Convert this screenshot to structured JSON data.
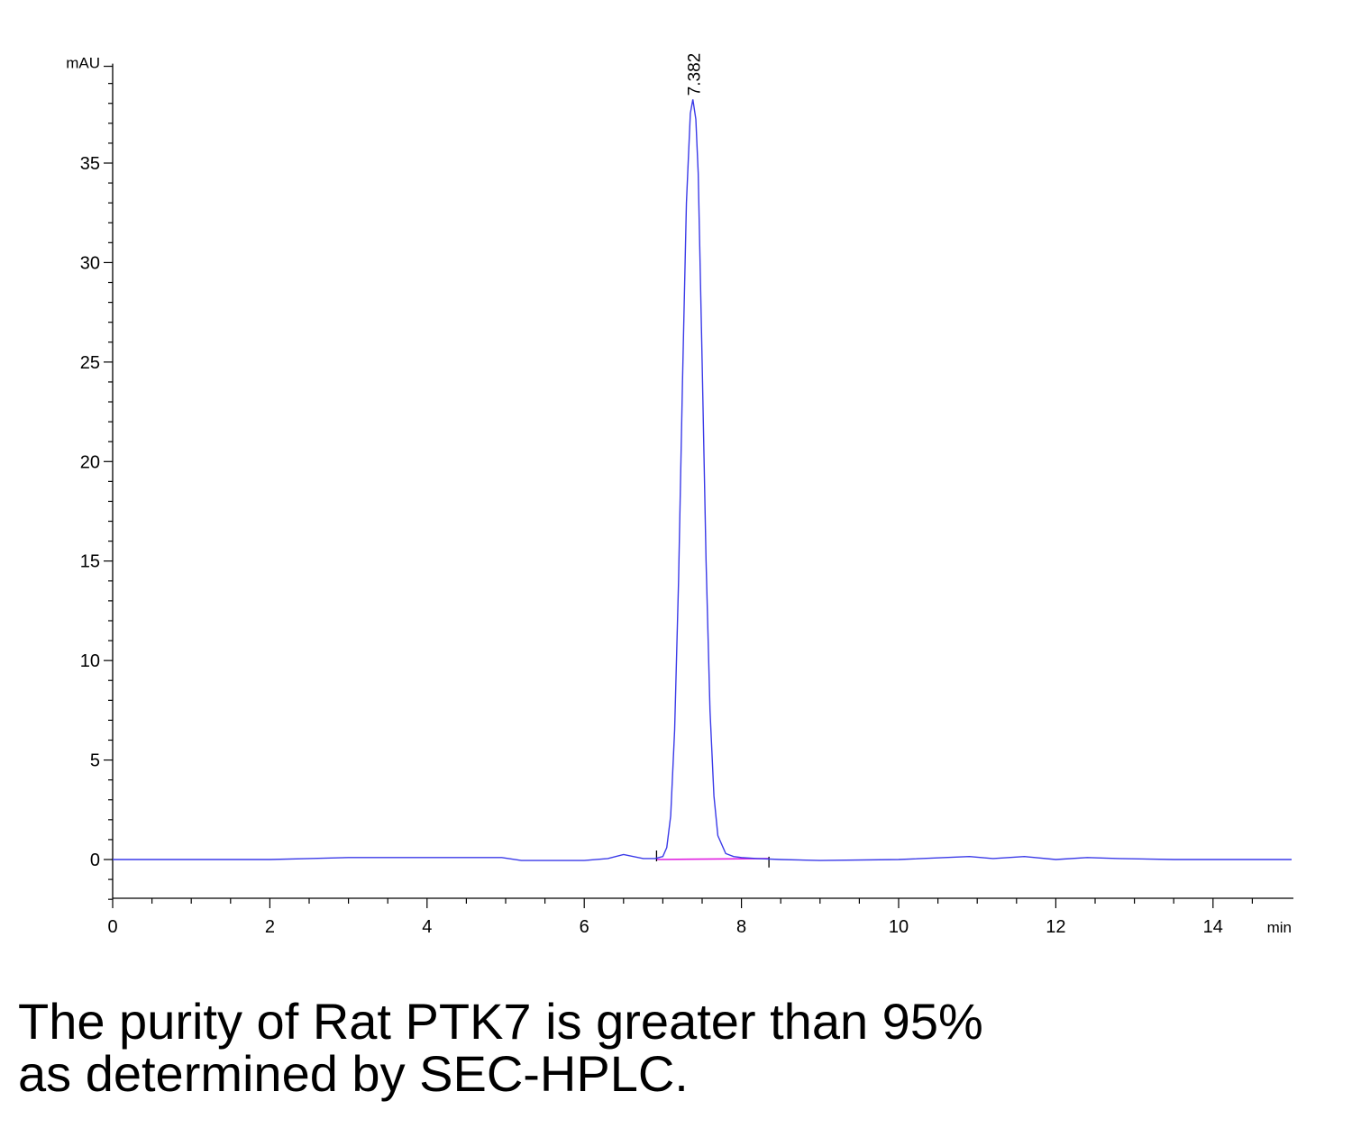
{
  "chart_data": {
    "type": "line",
    "title": "",
    "xlabel": "",
    "ylabel": "",
    "x_unit": "min",
    "y_unit": "mAU",
    "xlim": [
      0,
      15
    ],
    "ylim": [
      -2,
      40
    ],
    "x_ticks": [
      0,
      2,
      4,
      6,
      8,
      10,
      12,
      14
    ],
    "y_ticks": [
      0,
      5,
      10,
      15,
      20,
      25,
      30,
      35
    ],
    "peaks": [
      {
        "label": "7.382",
        "retention_time": 7.382,
        "height": 38.2
      }
    ],
    "integration": {
      "start": 6.92,
      "end": 8.35
    },
    "series": [
      {
        "x": [
          0,
          2,
          2.5,
          3,
          4,
          4.95,
          5.2,
          6,
          6.3,
          6.5,
          6.75,
          6.9,
          7.0,
          7.05,
          7.1,
          7.15,
          7.2,
          7.25,
          7.3,
          7.35,
          7.382,
          7.42,
          7.45,
          7.5,
          7.55,
          7.6,
          7.65,
          7.7,
          7.8,
          7.9,
          8.0,
          8.2,
          8.5,
          9.0,
          10,
          10.9,
          11.2,
          11.6,
          12,
          12.4,
          12.8,
          13.5,
          14,
          15
        ],
        "y": [
          0,
          0,
          0.05,
          0.1,
          0.1,
          0.1,
          -0.05,
          -0.05,
          0.05,
          0.25,
          0.05,
          0.05,
          0.15,
          0.6,
          2.2,
          6.5,
          14,
          24,
          33,
          37.5,
          38.2,
          37.2,
          34.5,
          25,
          15,
          7.5,
          3.2,
          1.2,
          0.3,
          0.15,
          0.1,
          0.05,
          0,
          -0.05,
          0,
          0.15,
          0.05,
          0.15,
          0,
          0.1,
          0.05,
          0,
          0,
          0
        ]
      }
    ]
  },
  "caption": {
    "line1": "The purity of Rat PTK7 is greater than 95%",
    "line2": "as determined by SEC-HPLC."
  }
}
